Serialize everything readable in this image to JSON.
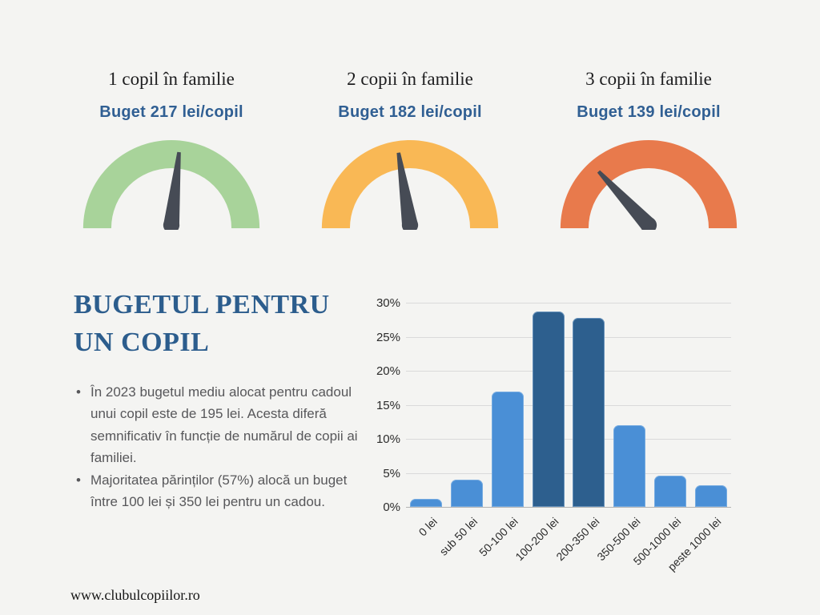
{
  "background_color": "#f4f4f2",
  "gauges": [
    {
      "title": "1 copil în familie",
      "subtitle": "Buget 217 lei/copil",
      "budget_lei_per_child": 217,
      "arc_color": "#a8d39a",
      "needle_color": "#464b55",
      "needle_angle_deg": 6
    },
    {
      "title": "2 copii în familie",
      "subtitle": "Buget 182 lei/copil",
      "budget_lei_per_child": 182,
      "arc_color": "#f9b855",
      "needle_color": "#464b55",
      "needle_angle_deg": -9
    },
    {
      "title": "3  copii în familie",
      "subtitle": "Buget 139 lei/copil",
      "budget_lei_per_child": 139,
      "arc_color": "#e87a4c",
      "needle_color": "#464b55",
      "needle_angle_deg": -43
    }
  ],
  "info": {
    "title_line1": "BUGETUL PENTRU",
    "title_line2": "UN COPIL",
    "title_color": "#2c5d8d",
    "bullets": [
      "În 2023 bugetul mediu alocat pentru cadoul unui copil este de 195 lei. Acesta diferă semnificativ în funcție de numărul de copii ai familiei.",
      "Majoritatea părinților (57%) alocă un buget între 100 lei și 350 lei pentru un cadou."
    ]
  },
  "chart_data": {
    "type": "bar",
    "title": "",
    "xlabel": "",
    "ylabel": "",
    "categories": [
      "0 lei",
      "sub 50 lei",
      "50-100 lei",
      "100-200 lei",
      "200-350 lei",
      "350-500 lei",
      "500-1000 lei",
      "peste 1000 lei"
    ],
    "values": [
      1.2,
      4,
      17,
      28.7,
      27.8,
      12,
      4.6,
      3.2
    ],
    "bar_colors": [
      "#4a8fd6",
      "#4a8fd6",
      "#4a8fd6",
      "#2d5f8e",
      "#2d5f8e",
      "#4a8fd6",
      "#4a8fd6",
      "#4a8fd6"
    ],
    "highlight_color": "#2d5f8e",
    "base_color": "#4a8fd6",
    "ylim": [
      0,
      30
    ],
    "ytick_step": 5,
    "ytick_suffix": "%",
    "grid": true,
    "legend_position": "none"
  },
  "footer": {
    "url": "www.clubulcopiilor.ro"
  }
}
